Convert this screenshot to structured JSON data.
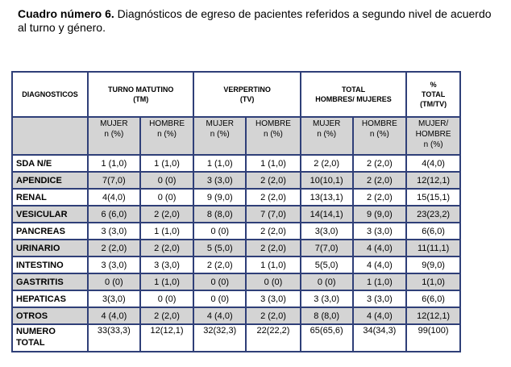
{
  "caption": {
    "bold": "Cuadro número 6.",
    "text": " Diagnósticos de egreso de pacientes referidos a segundo nivel de acuerdo al turno y género."
  },
  "table": {
    "header": {
      "diagnosticos": "DIAGNOSTICOS",
      "turno_matutino": [
        "TURNO MATUTINO",
        "(TM)"
      ],
      "verpertino": [
        "VERPERTINO",
        "(TV)"
      ],
      "total": [
        "TOTAL",
        "HOMBRES/ MUJERES"
      ],
      "porcentaje": [
        "%",
        "TOTAL",
        "(TM/TV)"
      ]
    },
    "subheader": {
      "mujer": [
        "MUJER",
        "n (%)"
      ],
      "hombre": [
        "HOMBRE",
        "n (%)"
      ],
      "mujer_hombre": [
        "MUJER/",
        "HOMBRE",
        "n (%)"
      ]
    },
    "rows": [
      {
        "label": "SDA N/E",
        "values": [
          "1 (1,0)",
          "1 (1,0)",
          "1 (1,0)",
          "1 (1,0)",
          "2 (2,0)",
          "2 (2,0)",
          "4(4,0)"
        ]
      },
      {
        "label": "APENDICE",
        "values": [
          "7(7,0)",
          "0 (0)",
          "3 (3,0)",
          "2 (2,0)",
          "10(10,1)",
          "2 (2,0)",
          "12(12,1)"
        ]
      },
      {
        "label": "RENAL",
        "values": [
          "4(4,0)",
          "0 (0)",
          "9 (9,0)",
          "2 (2,0)",
          "13(13,1)",
          "2 (2,0)",
          "15(15,1)"
        ]
      },
      {
        "label": "VESICULAR",
        "values": [
          "6 (6,0)",
          "2 (2,0)",
          "8 (8,0)",
          "7 (7,0)",
          "14(14,1)",
          "9 (9,0)",
          "23(23,2)"
        ]
      },
      {
        "label": "PANCREAS",
        "values": [
          "3 (3,0)",
          "1 (1,0)",
          "0 (0)",
          "2 (2,0)",
          "3(3,0)",
          "3 (3,0)",
          "6(6,0)"
        ]
      },
      {
        "label": "URINARIO",
        "values": [
          "2 (2,0)",
          "2 (2,0)",
          "5 (5,0)",
          "2 (2,0)",
          "7(7,0)",
          "4 (4,0)",
          "11(11,1)"
        ]
      },
      {
        "label": "INTESTINO",
        "values": [
          "3 (3,0)",
          "3 (3,0)",
          "2 (2,0)",
          "1 (1,0)",
          "5(5,0)",
          "4 (4,0)",
          "9(9,0)"
        ]
      },
      {
        "label": "GASTRITIS",
        "values": [
          "0 (0)",
          "1 (1,0)",
          "0 (0)",
          "0 (0)",
          "0 (0)",
          "1 (1,0)",
          "1(1,0)"
        ]
      },
      {
        "label": "HEPATICAS",
        "values": [
          "3(3,0)",
          "0 (0)",
          "0 (0)",
          "3 (3,0)",
          "3 (3,0)",
          "3 (3,0)",
          "6(6,0)"
        ]
      },
      {
        "label": "OTROS",
        "values": [
          "4 (4,0)",
          "2 (2,0)",
          "4 (4,0)",
          "2 (2,0)",
          "8 (8,0)",
          "4 (4,0)",
          "12(12,1)"
        ]
      }
    ],
    "total_row": {
      "label": [
        "NUMERO",
        "TOTAL"
      ],
      "values": [
        "33(33,3)",
        "12(12,1)",
        "32(32,3)",
        "22(22,2)",
        "65(65,6)",
        "34(34,3)",
        "99(100)"
      ]
    }
  }
}
